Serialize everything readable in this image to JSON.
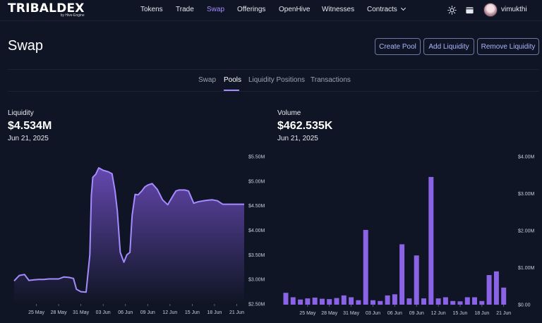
{
  "brand": {
    "logo_text": "TRIBALDEX",
    "logo_sub": "by Hive-Engine"
  },
  "nav": {
    "items": [
      {
        "label": "Tokens",
        "active": false
      },
      {
        "label": "Trade",
        "active": false
      },
      {
        "label": "Swap",
        "active": true
      },
      {
        "label": "Offerings",
        "active": false
      },
      {
        "label": "OpenHive",
        "active": false
      },
      {
        "label": "Witnesses",
        "active": false
      },
      {
        "label": "Contracts",
        "active": false
      }
    ],
    "icons": [
      "sun-icon",
      "wallet-icon"
    ],
    "username": "vimukthi"
  },
  "header": {
    "title": "Swap",
    "buttons": [
      "Create Pool",
      "Add Liquidity",
      "Remove Liquidity"
    ]
  },
  "tabs": [
    {
      "label": "Swap",
      "active": false
    },
    {
      "label": "Pools",
      "active": true
    },
    {
      "label": "Liquidity Positions",
      "active": false
    },
    {
      "label": "Transactions",
      "active": false
    }
  ],
  "liquidity": {
    "label": "Liquidity",
    "value": "$4.534M",
    "date": "Jun 21, 2025"
  },
  "volume": {
    "label": "Volume",
    "value": "$462.535K",
    "date": "Jun 21, 2025"
  },
  "accent_color": "#a58bff",
  "chart_data": [
    {
      "type": "area",
      "y_unit": "USD (millions)",
      "x_ticks": [
        "25 May",
        "28 May",
        "31 May",
        "03 Jun",
        "06 Jun",
        "09 Jun",
        "12 Jun",
        "15 Jun",
        "18 Jun",
        "21 Jun"
      ],
      "y_ticks": [
        "$2.50M",
        "$3.00M",
        "$3.50M",
        "$4.00M",
        "$4.50M",
        "$5.00M",
        "$5.50M"
      ],
      "ylim": [
        2.5,
        5.5
      ],
      "x_range": [
        22,
        53
      ],
      "x": [
        22,
        22.7,
        23.4,
        24.0,
        24.6,
        25.3,
        26.0,
        26.7,
        27.4,
        28.0,
        28.7,
        29.4,
        30.0,
        30.4,
        31.0,
        31.7,
        32.2,
        32.4,
        32.6,
        33.0,
        33.4,
        34.0,
        34.7,
        35.2,
        35.6,
        35.9,
        36.3,
        36.8,
        37.2,
        37.6,
        37.9,
        38.3,
        38.7,
        39.2,
        39.6,
        40.0,
        40.6,
        41.3,
        42.0,
        42.7,
        43.4,
        43.8,
        44.2,
        45.0,
        45.5,
        46.2,
        46.8,
        47.5,
        48.0,
        48.7,
        49.4,
        50.1,
        50.8,
        51.5,
        52.2,
        52.8,
        53.0
      ],
      "y": [
        2.97,
        3.08,
        3.1,
        2.98,
        2.99,
        3.0,
        3.0,
        3.01,
        3.01,
        3.01,
        3.05,
        3.04,
        3.02,
        2.8,
        2.75,
        2.74,
        3.5,
        4.7,
        5.08,
        5.14,
        5.27,
        5.22,
        5.19,
        5.15,
        4.8,
        4.4,
        3.55,
        3.35,
        3.5,
        3.55,
        4.3,
        4.73,
        4.72,
        4.8,
        4.88,
        4.92,
        4.95,
        4.83,
        4.62,
        4.52,
        4.7,
        4.8,
        4.82,
        4.82,
        4.8,
        4.55,
        4.58,
        4.6,
        4.61,
        4.62,
        4.6,
        4.53,
        4.53,
        4.53,
        4.53,
        4.53,
        4.53
      ]
    },
    {
      "type": "bar",
      "y_unit": "USD (millions)",
      "x_ticks": [
        "25 May",
        "28 May",
        "31 May",
        "03 Jun",
        "06 Jun",
        "09 Jun",
        "12 Jun",
        "15 Jun",
        "18 Jun",
        "21 Jun"
      ],
      "y_ticks": [
        "$0.00",
        "$1.00M",
        "$2.00M",
        "$3.00M",
        "$4.00M"
      ],
      "ylim": [
        0,
        4
      ],
      "x_range": [
        22,
        53
      ],
      "x": [
        22,
        23,
        24,
        25,
        26,
        27,
        28,
        29,
        30,
        31,
        32,
        33,
        34,
        35,
        36,
        37,
        38,
        39,
        40,
        41,
        42,
        43,
        44,
        45,
        46,
        47,
        48,
        49,
        50,
        51,
        52
      ],
      "values": [
        0.32,
        0.2,
        0.14,
        0.17,
        0.19,
        0.16,
        0.15,
        0.18,
        0.25,
        0.2,
        0.12,
        2.02,
        0.12,
        0.1,
        0.25,
        0.28,
        1.63,
        0.17,
        1.33,
        0.17,
        3.45,
        0.17,
        0.2,
        0.1,
        0.09,
        0.2,
        0.2,
        0.1,
        0.8,
        0.9,
        0.46
      ]
    }
  ]
}
